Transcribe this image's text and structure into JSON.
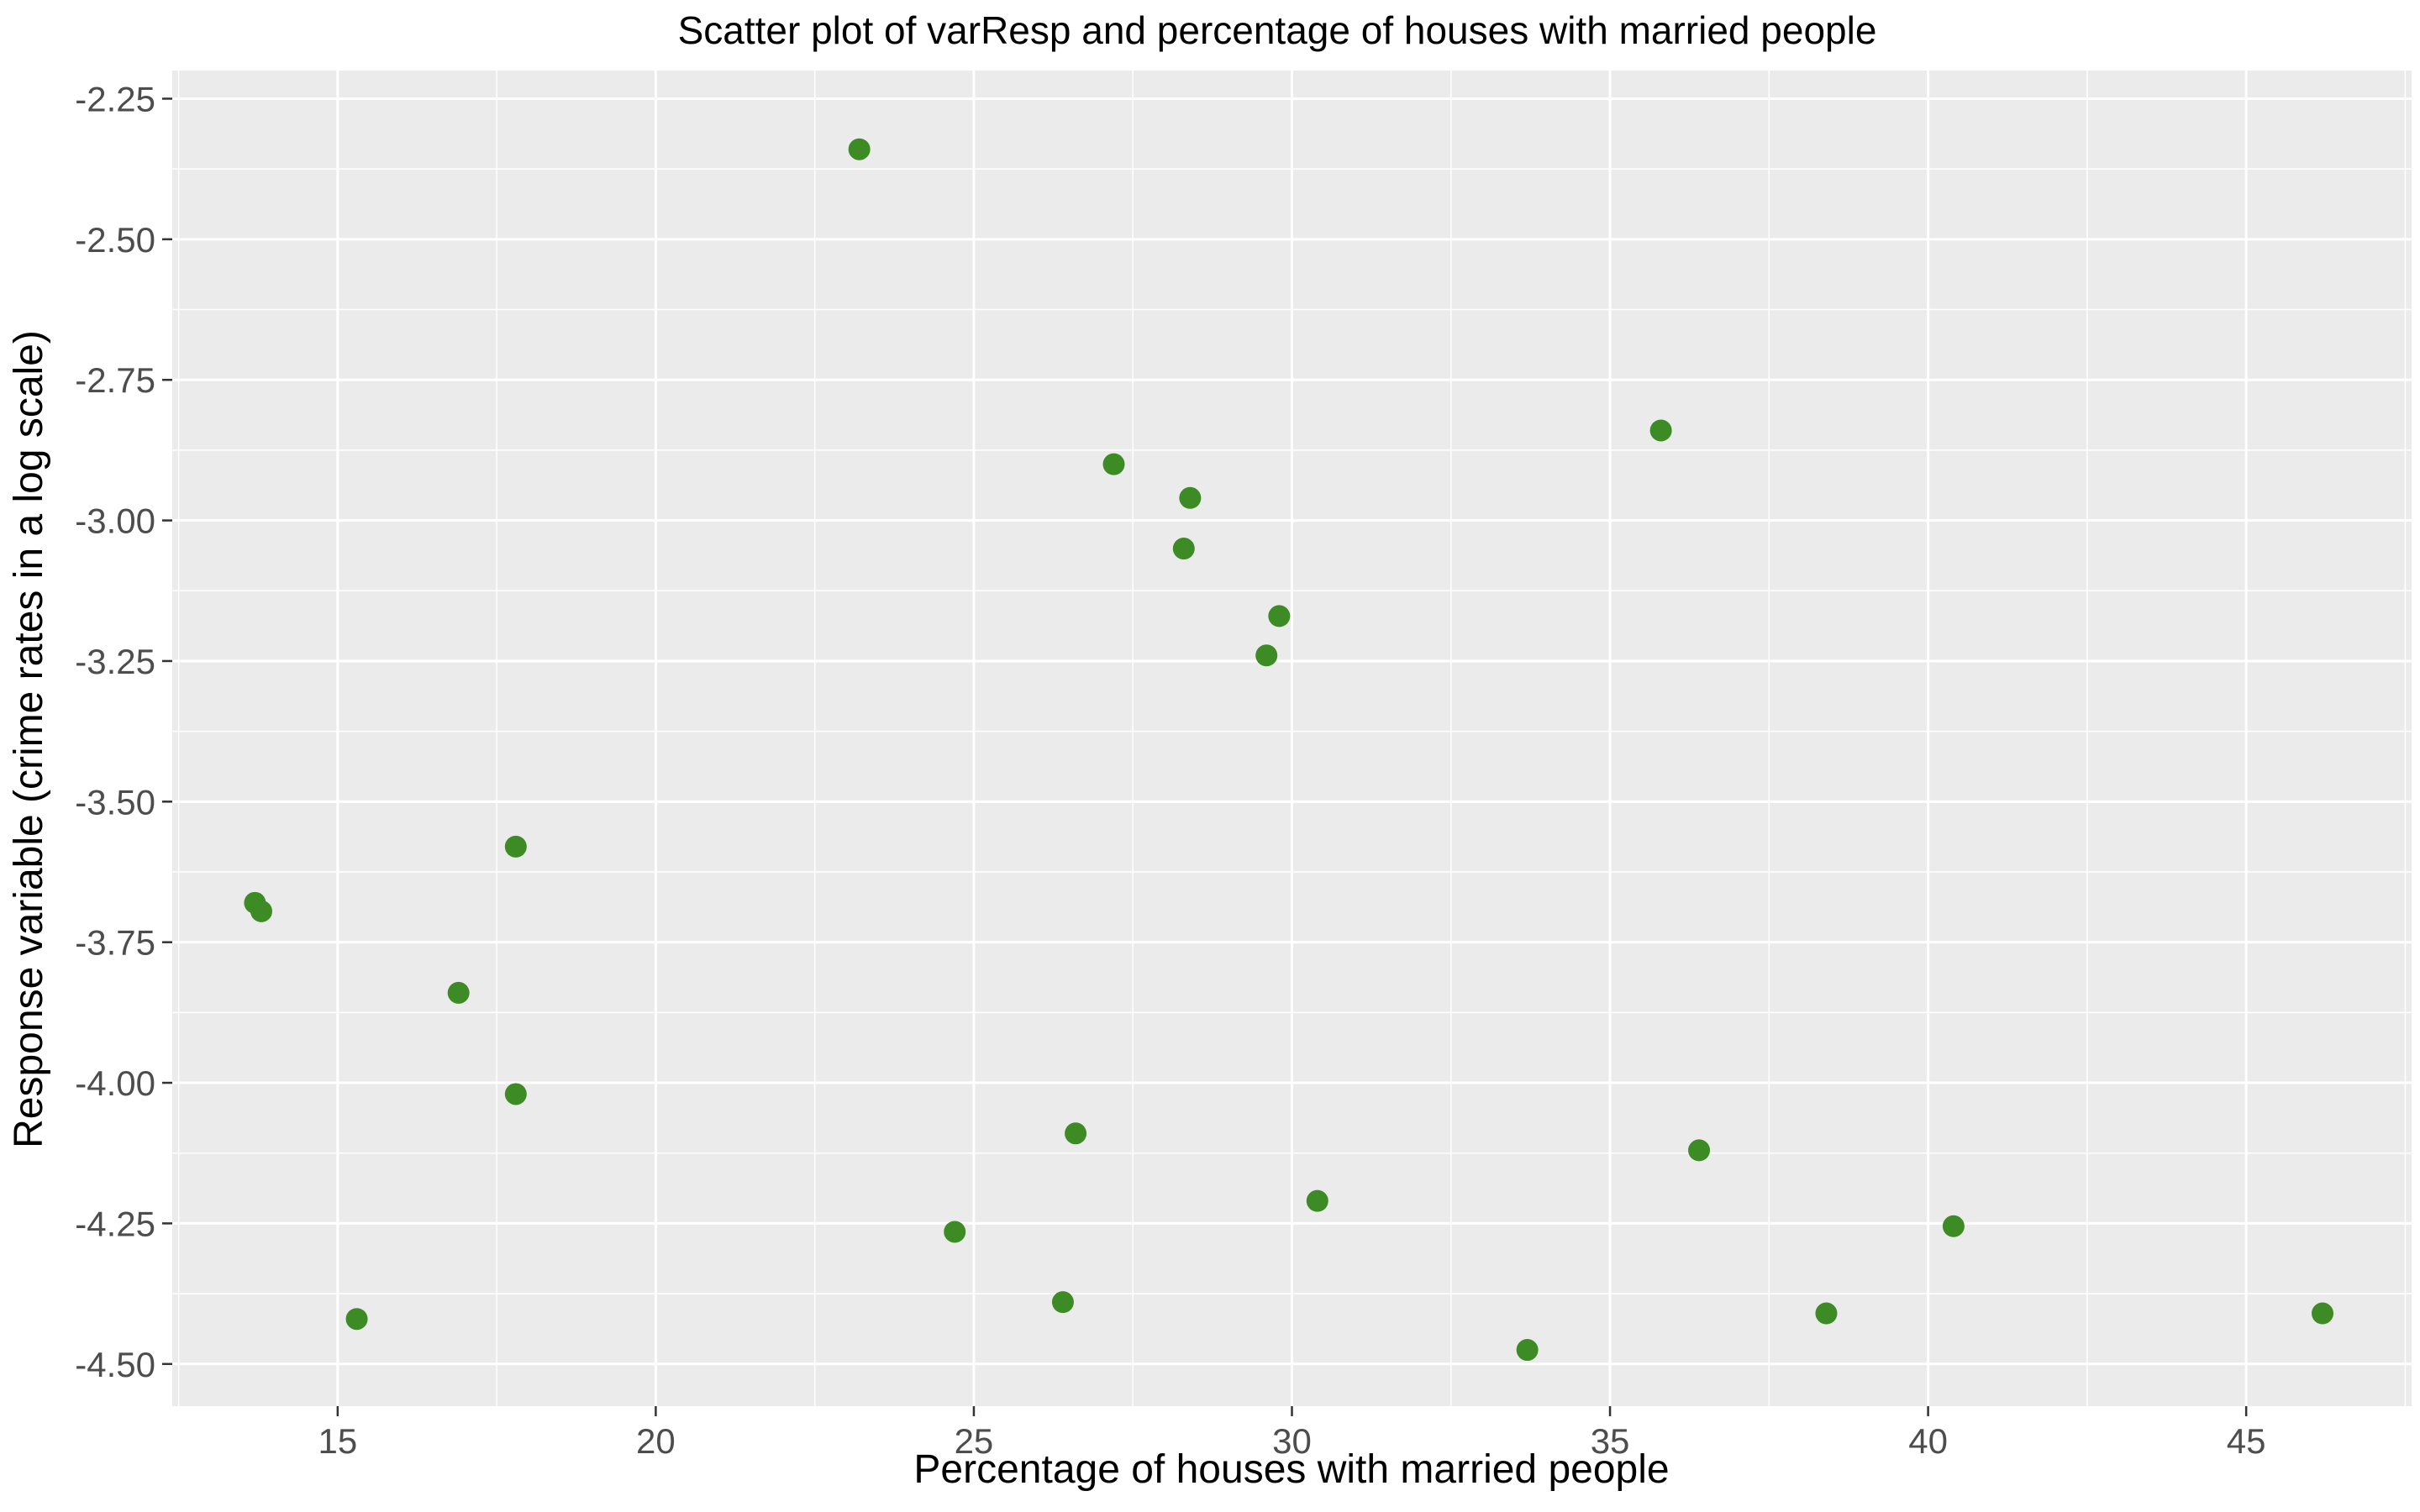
{
  "chart_data": {
    "type": "scatter",
    "title": "Scatter plot of varResp and percentage of houses with married people",
    "xlabel": "Percentage of houses with married people",
    "ylabel": "Response variable (crime rates in a log scale)",
    "xlim": [
      12.4,
      47.6
    ],
    "ylim": [
      -4.575,
      -2.2
    ],
    "x_ticks": [
      15,
      20,
      25,
      30,
      35,
      40,
      45
    ],
    "x_tick_labels": [
      "15",
      "20",
      "25",
      "30",
      "35",
      "40",
      "45"
    ],
    "y_ticks": [
      -2.25,
      -2.5,
      -2.75,
      -3.0,
      -3.25,
      -3.5,
      -3.75,
      -4.0,
      -4.25,
      -4.5
    ],
    "y_tick_labels": [
      "-2.25",
      "-2.50",
      "-2.75",
      "-3.00",
      "-3.25",
      "-3.50",
      "-3.75",
      "-4.00",
      "-4.25",
      "-4.50"
    ],
    "grid": true,
    "panel_background": "#ebebeb",
    "point_color": "#3d8b25",
    "points": [
      {
        "x": 23.2,
        "y": -2.34
      },
      {
        "x": 35.8,
        "y": -2.84
      },
      {
        "x": 27.2,
        "y": -2.9
      },
      {
        "x": 28.4,
        "y": -2.96
      },
      {
        "x": 28.3,
        "y": -3.05
      },
      {
        "x": 29.8,
        "y": -3.17
      },
      {
        "x": 29.6,
        "y": -3.24
      },
      {
        "x": 17.8,
        "y": -3.58
      },
      {
        "x": 13.7,
        "y": -3.68
      },
      {
        "x": 13.8,
        "y": -3.695
      },
      {
        "x": 16.9,
        "y": -3.84
      },
      {
        "x": 17.8,
        "y": -4.02
      },
      {
        "x": 26.6,
        "y": -4.09
      },
      {
        "x": 36.4,
        "y": -4.12
      },
      {
        "x": 30.4,
        "y": -4.21
      },
      {
        "x": 40.4,
        "y": -4.255
      },
      {
        "x": 24.7,
        "y": -4.265
      },
      {
        "x": 26.4,
        "y": -4.39
      },
      {
        "x": 38.4,
        "y": -4.41
      },
      {
        "x": 46.2,
        "y": -4.41
      },
      {
        "x": 15.3,
        "y": -4.42
      },
      {
        "x": 33.7,
        "y": -4.475
      }
    ]
  }
}
